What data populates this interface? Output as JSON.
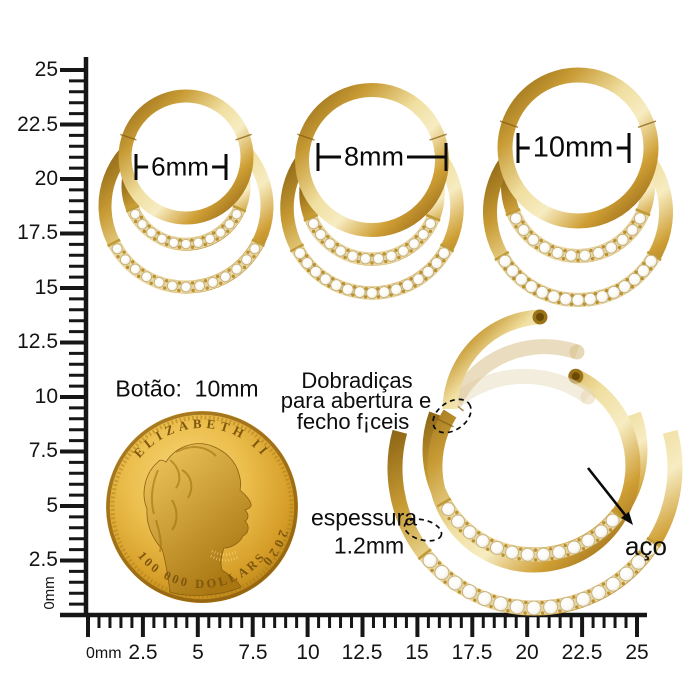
{
  "rulers": {
    "vertical_labels": [
      "25",
      "22.5",
      "20",
      "17.5",
      "15",
      "12.5",
      "10",
      "7.5",
      "5",
      "2.5"
    ],
    "vertical_origin": "0mm",
    "horizontal_labels": [
      "0mm",
      "2.5",
      "5",
      "7.5",
      "10",
      "12.5",
      "15",
      "17.5",
      "20",
      "22.5",
      "25"
    ]
  },
  "earrings": [
    {
      "size": "6mm"
    },
    {
      "size": "8mm"
    },
    {
      "size": "10mm"
    }
  ],
  "coin": {
    "label": "Botão:  10mm",
    "legend_top": "ELIZABETH II",
    "legend_bottom": "100 000 DOLLARS",
    "year": "2020"
  },
  "annotations": {
    "hinge": [
      "Dobradiças",
      "para abertura e",
      "fecho f¡ceis"
    ],
    "thickness": [
      "espessura",
      "1.2mm"
    ],
    "material": "aço"
  },
  "colors": {
    "gold_accent": "#c9992d",
    "band_gold": "#e9d6a2",
    "gem_white": "#fbfaf6",
    "text": "#111111"
  }
}
